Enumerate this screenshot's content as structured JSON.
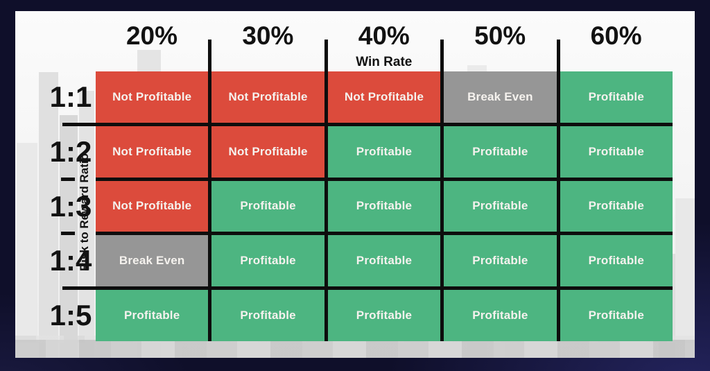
{
  "chart_data": {
    "type": "heatmap",
    "title": "",
    "x_axis_label": "Win Rate",
    "y_axis_label": "Risk to Reward Ratio",
    "columns": [
      "20%",
      "30%",
      "40%",
      "50%",
      "60%"
    ],
    "rows": [
      "1:1",
      "1:2",
      "1:3",
      "1:4",
      "1:5"
    ],
    "cells": [
      [
        "Not Profitable",
        "Not Profitable",
        "Not Profitable",
        "Break Even",
        "Profitable"
      ],
      [
        "Not Profitable",
        "Not Profitable",
        "Profitable",
        "Profitable",
        "Profitable"
      ],
      [
        "Not Profitable",
        "Profitable",
        "Profitable",
        "Profitable",
        "Profitable"
      ],
      [
        "Break Even",
        "Profitable",
        "Profitable",
        "Profitable",
        "Profitable"
      ],
      [
        "Profitable",
        "Profitable",
        "Profitable",
        "Profitable",
        "Profitable"
      ]
    ],
    "status_colors": {
      "Not Profitable": "#dc4b3c",
      "Break Even": "#969696",
      "Profitable": "#4db581"
    },
    "grid": true,
    "legend_position": "none"
  },
  "colors": {
    "frame_navy": "#0f0f2a",
    "panel_bg": "#f6f6f6",
    "grid_line": "#0d0d0d",
    "cell_text": "#f5f2ee",
    "label_text": "#121212"
  }
}
